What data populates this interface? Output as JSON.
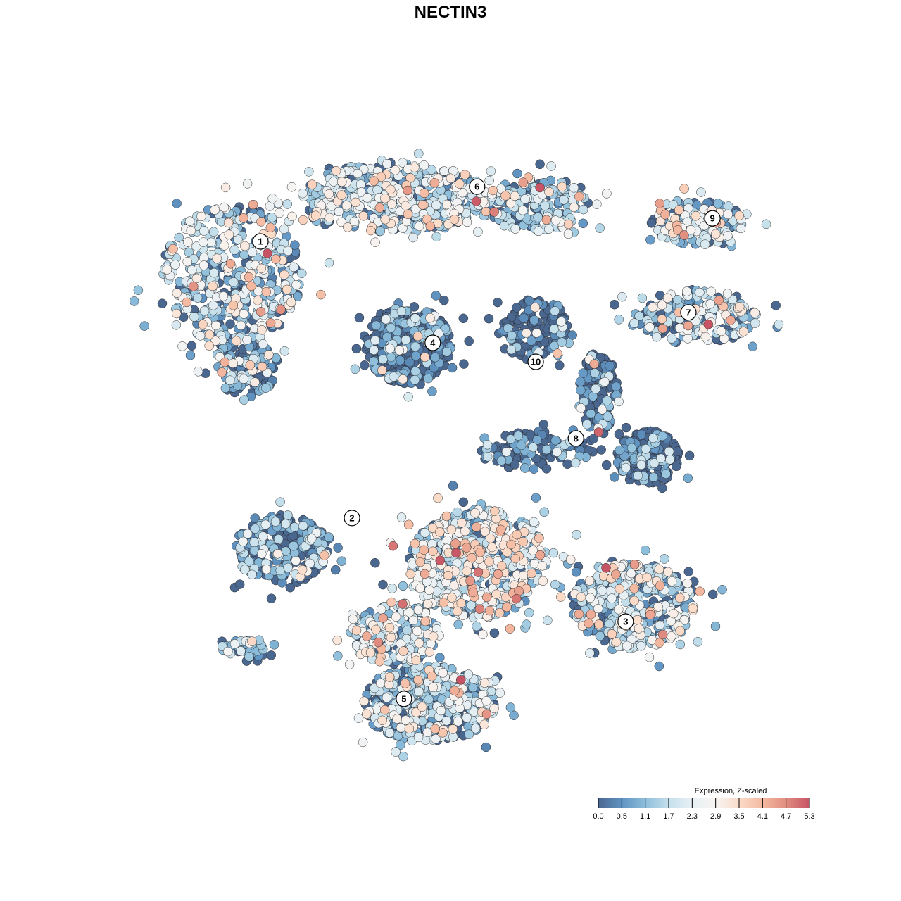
{
  "chart_data": {
    "type": "scatter",
    "title": "NECTIN3",
    "xlabel": "",
    "ylabel": "",
    "axes_visible": false,
    "grid": false,
    "colorbar": {
      "title": "Expression, Z-scaled",
      "ticks": [
        "0.0",
        "0.5",
        "1.1",
        "1.7",
        "2.3",
        "2.9",
        "3.5",
        "4.1",
        "4.7",
        "5.3"
      ],
      "range": [
        0,
        5.3
      ],
      "colors": [
        "#4a6790",
        "#5f93c2",
        "#8dbedb",
        "#c5e0ec",
        "#e8f0f4",
        "#f7f4f2",
        "#fbdcc9",
        "#f4b9a0",
        "#e08d80",
        "#c75465"
      ],
      "placement": "bottom-right"
    },
    "cluster_labels": [
      {
        "label": "1",
        "x": -6.0,
        "y": 6.6
      },
      {
        "label": "6",
        "x": 0.84,
        "y": 8.33
      },
      {
        "label": "9",
        "x": 8.27,
        "y": 7.33
      },
      {
        "label": "7",
        "x": 7.51,
        "y": 4.36
      },
      {
        "label": "4",
        "x": -0.56,
        "y": 3.4
      },
      {
        "label": "10",
        "x": 2.69,
        "y": 2.8
      },
      {
        "label": "8",
        "x": 3.96,
        "y": 0.38
      },
      {
        "label": "2",
        "x": -3.11,
        "y": -2.13
      },
      {
        "label": "3",
        "x": 5.53,
        "y": -5.4
      },
      {
        "label": "5",
        "x": -1.47,
        "y": -7.84
      }
    ],
    "point_groups": [
      {
        "cluster": "1",
        "x": -6.89,
        "y": 5.56,
        "sx": 2.0,
        "sy": 2.0,
        "n": 450,
        "expr_mean": 1.5
      },
      {
        "cluster": "1",
        "x": -6.44,
        "y": 2.67,
        "sx": 0.9,
        "sy": 0.9,
        "n": 120,
        "expr_mean": 0.8
      },
      {
        "cluster": "6",
        "x": -1.78,
        "y": 8.0,
        "sx": 2.67,
        "sy": 1.0,
        "n": 500,
        "expr_mean": 1.6
      },
      {
        "cluster": "6",
        "x": 2.67,
        "y": 7.78,
        "sx": 1.56,
        "sy": 0.78,
        "n": 200,
        "expr_mean": 1.2
      },
      {
        "cluster": "4",
        "x": -1.33,
        "y": 3.33,
        "sx": 1.22,
        "sy": 1.11,
        "n": 450,
        "expr_mean": -0.4
      },
      {
        "cluster": "10",
        "x": 2.67,
        "y": 3.78,
        "sx": 1.1,
        "sy": 0.9,
        "n": 150,
        "expr_mean": -0.3
      },
      {
        "cluster": "9",
        "x": 7.78,
        "y": 7.22,
        "sx": 1.33,
        "sy": 0.67,
        "n": 160,
        "expr_mean": 1.4
      },
      {
        "cluster": "7",
        "x": 7.78,
        "y": 4.22,
        "sx": 1.78,
        "sy": 0.78,
        "n": 220,
        "expr_mean": 1.3
      },
      {
        "cluster": "8",
        "x": 4.67,
        "y": 1.78,
        "sx": 0.56,
        "sy": 1.22,
        "n": 150,
        "expr_mean": -0.2
      },
      {
        "cluster": "8",
        "x": 6.22,
        "y": -0.22,
        "sx": 0.9,
        "sy": 0.78,
        "n": 200,
        "expr_mean": -0.5
      },
      {
        "cluster": "8",
        "x": 2.67,
        "y": 0.0,
        "sx": 1.56,
        "sy": 0.56,
        "n": 120,
        "expr_mean": -0.1
      },
      {
        "cluster": "2",
        "x": -5.33,
        "y": -3.11,
        "sx": 1.33,
        "sy": 1.0,
        "n": 250,
        "expr_mean": 0.5
      },
      {
        "cluster": "2",
        "x": 0.89,
        "y": -3.56,
        "sx": 2.0,
        "sy": 1.56,
        "n": 600,
        "expr_mean": 1.9
      },
      {
        "cluster": "3",
        "x": 5.78,
        "y": -4.89,
        "sx": 1.78,
        "sy": 1.22,
        "n": 450,
        "expr_mean": 1.5
      },
      {
        "cluster": "5",
        "x": -0.67,
        "y": -8.0,
        "sx": 1.89,
        "sy": 1.11,
        "n": 450,
        "expr_mean": 1.2
      },
      {
        "cluster": "5",
        "x": -6.44,
        "y": -6.33,
        "sx": 0.78,
        "sy": 0.33,
        "n": 40,
        "expr_mean": 1.1
      },
      {
        "cluster": "5",
        "x": -1.78,
        "y": -5.78,
        "sx": 1.33,
        "sy": 0.89,
        "n": 200,
        "expr_mean": 1.7
      }
    ]
  }
}
